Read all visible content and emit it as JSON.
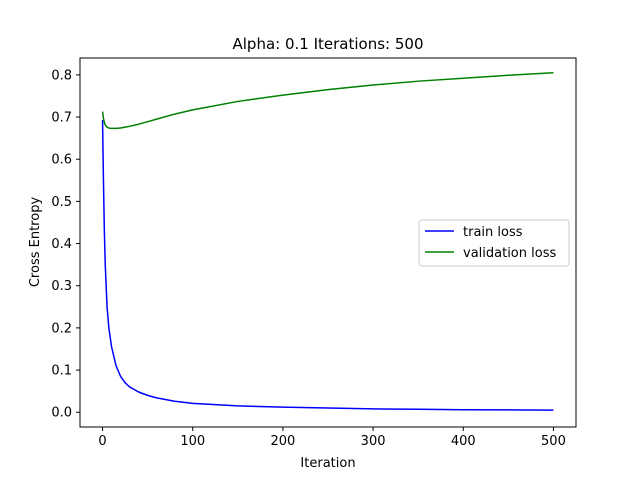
{
  "chart_data": {
    "type": "line",
    "title": "Alpha: 0.1 Iterations: 500",
    "xlabel": "Iteration",
    "ylabel": "Cross Entropy",
    "xlim": [
      -25,
      525
    ],
    "ylim": [
      -0.035,
      0.84
    ],
    "xticks": [
      0,
      100,
      200,
      300,
      400,
      500
    ],
    "yticks": [
      0.0,
      0.1,
      0.2,
      0.3,
      0.4,
      0.5,
      0.6,
      0.7,
      0.8
    ],
    "grid": false,
    "legend_position": "center-right",
    "series": [
      {
        "name": "train loss",
        "color": "#0000ff",
        "x": [
          0,
          1,
          2,
          3,
          5,
          7,
          10,
          15,
          20,
          25,
          30,
          40,
          50,
          60,
          80,
          100,
          150,
          200,
          250,
          300,
          350,
          400,
          450,
          500
        ],
        "y": [
          0.693,
          0.55,
          0.43,
          0.35,
          0.25,
          0.2,
          0.155,
          0.11,
          0.085,
          0.07,
          0.06,
          0.048,
          0.04,
          0.034,
          0.026,
          0.021,
          0.015,
          0.012,
          0.01,
          0.008,
          0.007,
          0.006,
          0.0055,
          0.005
        ]
      },
      {
        "name": "validation loss",
        "color": "#008000",
        "x": [
          0,
          1,
          2,
          3,
          5,
          7,
          10,
          15,
          20,
          25,
          30,
          40,
          50,
          60,
          80,
          100,
          150,
          200,
          250,
          300,
          350,
          400,
          450,
          500
        ],
        "y": [
          0.713,
          0.697,
          0.687,
          0.681,
          0.676,
          0.674,
          0.673,
          0.673,
          0.674,
          0.676,
          0.678,
          0.683,
          0.689,
          0.695,
          0.707,
          0.717,
          0.737,
          0.752,
          0.765,
          0.776,
          0.785,
          0.792,
          0.799,
          0.805
        ]
      }
    ]
  }
}
